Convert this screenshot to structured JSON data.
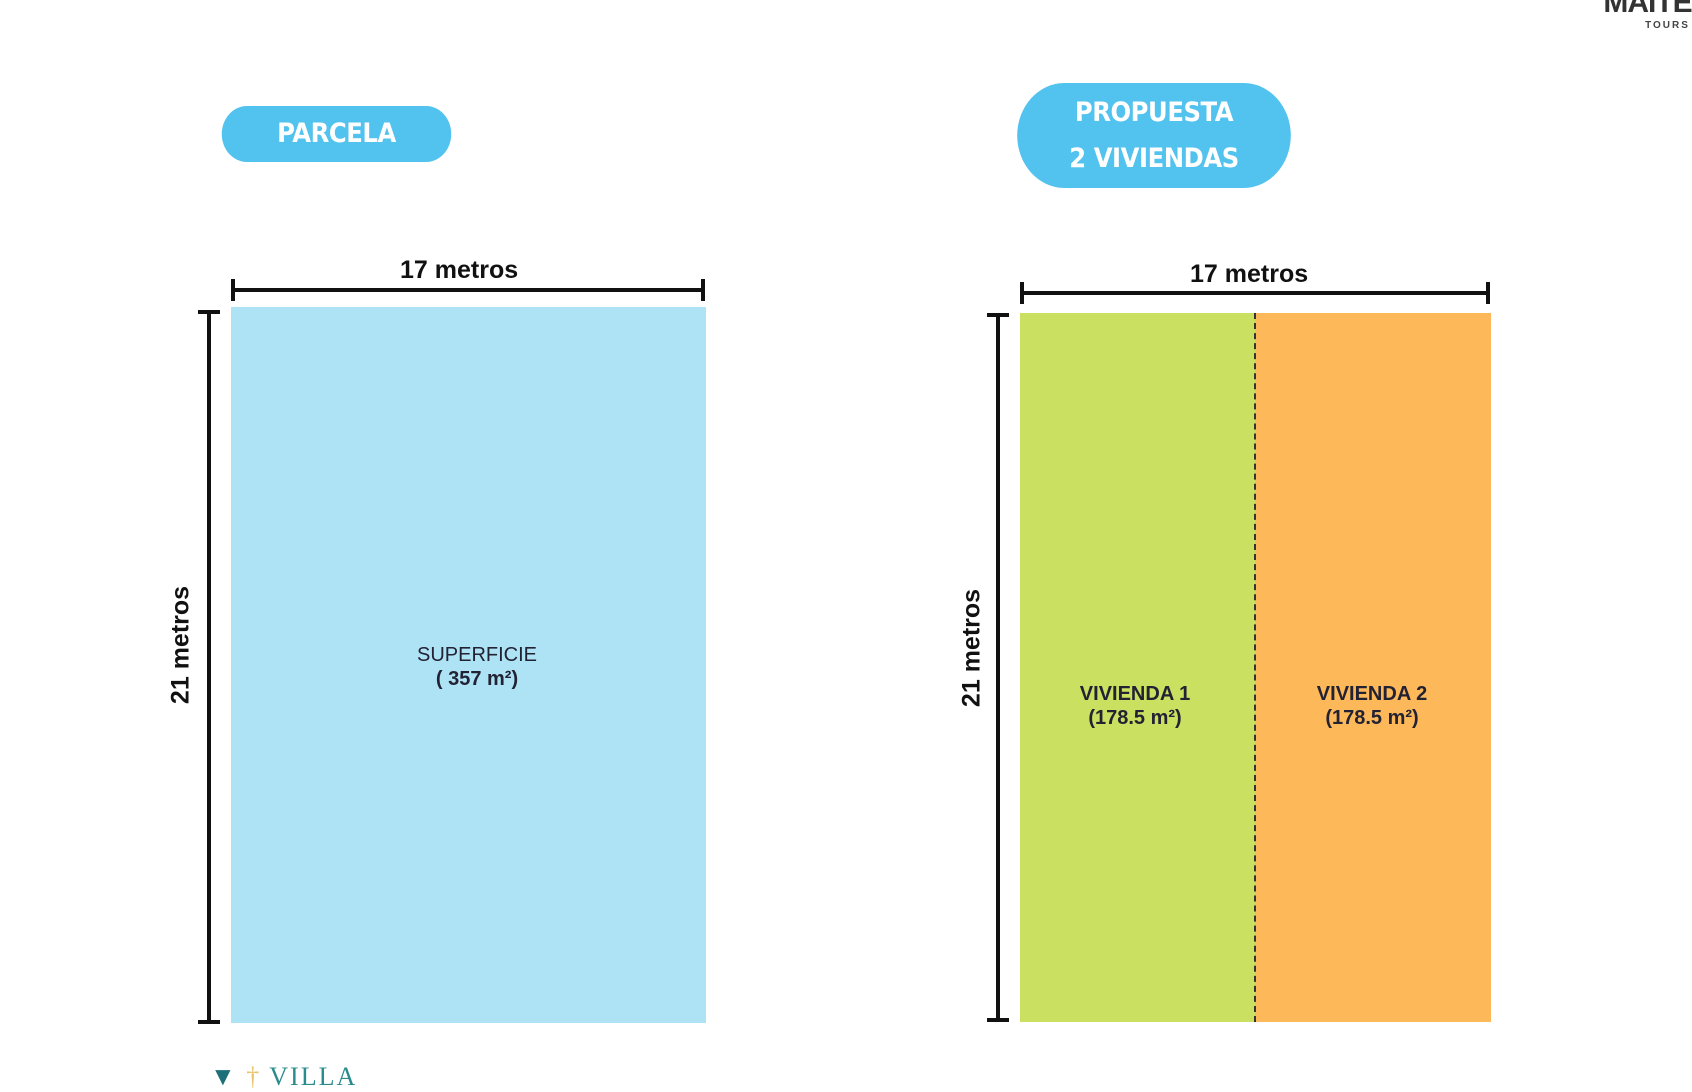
{
  "logos": {
    "top_right": "MAITE TOURS",
    "bottom_left": "VILLA"
  },
  "parcela": {
    "title": "PARCELA",
    "width_label": "17 metros",
    "height_label": "21 metros",
    "area_title": "SUPERFICIE",
    "area_value": "( 357 m²)",
    "color": "#aee3f6"
  },
  "propuesta": {
    "title_line1": "PROPUESTA",
    "title_line2": "2 VIVIENDAS",
    "width_label": "17 metros",
    "height_label": "21 metros",
    "units": [
      {
        "name": "VIVIENDA 1",
        "area": "(178.5 m²)",
        "color": "#c9e060"
      },
      {
        "name": "VIVIENDA 2",
        "area": "(178.5 m²)",
        "color": "#fdb85a"
      }
    ]
  },
  "accent": "#52c2ee"
}
